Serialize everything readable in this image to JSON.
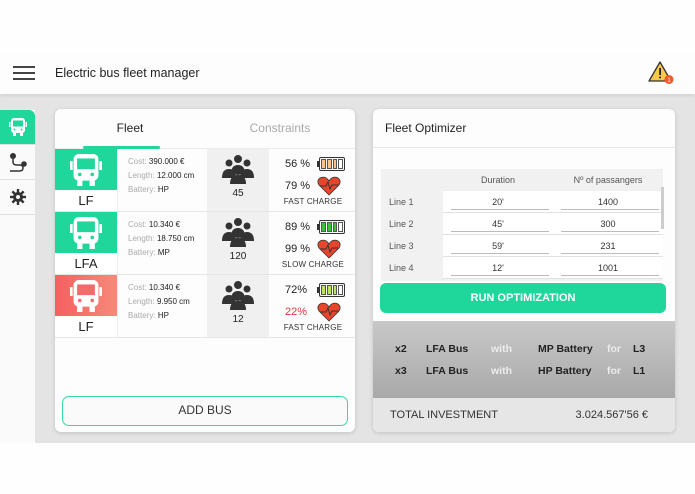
{
  "header": {
    "title": "Electric bus fleet manager",
    "alert_count": "1"
  },
  "sidebar": {
    "items": [
      {
        "name": "fleet",
        "icon": "bus-icon",
        "active": true
      },
      {
        "name": "routes",
        "icon": "route-icon",
        "active": false
      },
      {
        "name": "settings",
        "icon": "gear-icon",
        "active": false
      }
    ]
  },
  "fleet": {
    "tabs": [
      {
        "label": "Fleet",
        "active": true
      },
      {
        "label": "Constraints",
        "active": false
      }
    ],
    "labels": {
      "cost": "Cost:",
      "length": "Length:",
      "battery": "Battery:"
    },
    "buses": [
      {
        "type": "LF",
        "color": "#1fd69b",
        "cost": "390.000 €",
        "length": "12.000 cm",
        "battery": "HP",
        "passengers": "45",
        "charge_pct": "56 %",
        "health_pct": "79 %",
        "health_alert": false,
        "charge_mode": "FAST CHARGE",
        "battery_color": "#f7c489",
        "cells_filled": 3
      },
      {
        "type": "LFA",
        "color": "#1fd69b",
        "cost": "10.340 €",
        "length": "18.750 cm",
        "battery": "MP",
        "passengers": "120",
        "charge_pct": "89 %",
        "health_pct": "99 %",
        "health_alert": false,
        "charge_mode": "SLOW CHARGE",
        "battery_color": "#3cc43c",
        "cells_filled": 3
      },
      {
        "type": "LF",
        "color": "#f56a6a",
        "cost": "10.340 €",
        "length": "9.950 cm",
        "battery": "HP",
        "passengers": "12",
        "charge_pct": "72%",
        "health_pct": "22%",
        "health_alert": true,
        "charge_mode": "FAST CHARGE",
        "battery_color": "#b8e65a",
        "cells_filled": 3
      }
    ],
    "add_button": "ADD BUS"
  },
  "optimizer": {
    "title": "Fleet Optimizer",
    "columns": [
      "Duration",
      "Nº of passangers"
    ],
    "lines": [
      {
        "name": "Line 1",
        "duration": "20'",
        "passengers": "1400"
      },
      {
        "name": "Line 2",
        "duration": "45'",
        "passengers": "300"
      },
      {
        "name": "Line 3",
        "duration": "59'",
        "passengers": "231"
      },
      {
        "name": "Line 4",
        "duration": "12'",
        "passengers": "1001"
      }
    ],
    "run_button": "RUN OPTIMIZATION",
    "results": [
      {
        "qty": "x2",
        "bus": "LFA Bus",
        "with": "with",
        "battery": "MP Battery",
        "for": "for",
        "line": "L3"
      },
      {
        "qty": "x3",
        "bus": "LFA Bus",
        "with": "with",
        "battery": "HP Battery",
        "for": "for",
        "line": "L1"
      }
    ],
    "total_label": "TOTAL INVESTMENT",
    "total_value": "3.024.567'56 €"
  },
  "colors": {
    "accent": "#1fd69b",
    "danger": "#f56a6a",
    "health": "#e8452c",
    "warning": "#f7c948"
  }
}
